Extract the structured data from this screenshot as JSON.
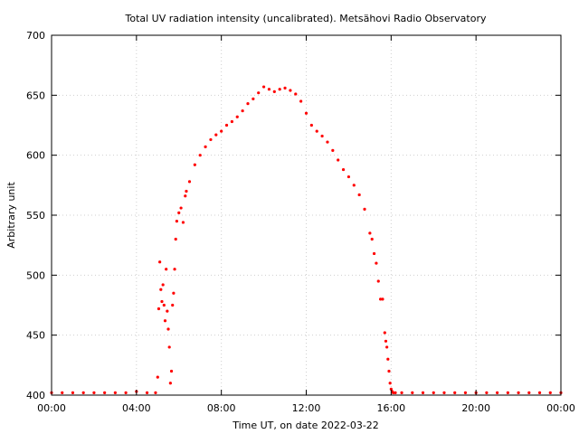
{
  "chart_data": {
    "type": "scatter",
    "title": "Total UV radiation intensity (uncalibrated). Metsähovi Radio Observatory",
    "xlabel": "Time UT, on date 2022-03-22",
    "ylabel": "Arbitrary unit",
    "xlim": [
      0,
      24
    ],
    "ylim": [
      400,
      700
    ],
    "x_ticks": [
      {
        "value": 0,
        "label": "00:00"
      },
      {
        "value": 4,
        "label": "04:00"
      },
      {
        "value": 8,
        "label": "08:00"
      },
      {
        "value": 12,
        "label": "12:00"
      },
      {
        "value": 16,
        "label": "16:00"
      },
      {
        "value": 20,
        "label": "20:00"
      },
      {
        "value": 24,
        "label": "00:00"
      }
    ],
    "y_ticks": [
      {
        "value": 400,
        "label": "400"
      },
      {
        "value": 450,
        "label": "450"
      },
      {
        "value": 500,
        "label": "500"
      },
      {
        "value": 550,
        "label": "550"
      },
      {
        "value": 600,
        "label": "600"
      },
      {
        "value": 650,
        "label": "650"
      },
      {
        "value": 700,
        "label": "700"
      }
    ],
    "grid": true,
    "legend": "none",
    "marker_color": "#ff0000",
    "series": [
      {
        "x": [
          0.0,
          0.5,
          1.0,
          1.5,
          2.0,
          2.5,
          3.0,
          3.5,
          4.0,
          4.5,
          4.9,
          5.0,
          5.05,
          5.1,
          5.15,
          5.2,
          5.25,
          5.3,
          5.35,
          5.4,
          5.45,
          5.5,
          5.55,
          5.6,
          5.65,
          5.7,
          5.75,
          5.8,
          5.85,
          5.9,
          6.0,
          6.1,
          6.2,
          6.3,
          6.35,
          6.5,
          6.75,
          7.0,
          7.25,
          7.5,
          7.75,
          8.0,
          8.25,
          8.5,
          8.75,
          9.0,
          9.25,
          9.5,
          9.75,
          10.0,
          10.25,
          10.5,
          10.75,
          11.0,
          11.25,
          11.5,
          11.75,
          12.0,
          12.25,
          12.5,
          12.75,
          13.0,
          13.25,
          13.5,
          13.75,
          14.0,
          14.25,
          14.5,
          14.75,
          15.0,
          15.1,
          15.2,
          15.3,
          15.4,
          15.5,
          15.6,
          15.7,
          15.75,
          15.8,
          15.85,
          15.9,
          15.95,
          16.0,
          16.05,
          16.1,
          16.2,
          16.5,
          17.0,
          17.5,
          18.0,
          18.5,
          19.0,
          19.5,
          20.0,
          20.5,
          21.0,
          21.5,
          22.0,
          22.5,
          23.0,
          23.5,
          24.0
        ],
        "y": [
          402,
          402,
          402,
          402,
          402,
          402,
          402,
          402,
          403,
          402,
          402,
          415,
          472,
          511,
          488,
          478,
          492,
          475,
          462,
          505,
          470,
          455,
          440,
          410,
          420,
          475,
          485,
          505,
          530,
          545,
          552,
          556,
          544,
          566,
          570,
          578,
          592,
          600,
          607,
          613,
          617,
          620,
          625,
          628,
          632,
          637,
          643,
          647,
          652,
          657,
          655,
          653,
          655,
          656,
          654,
          651,
          645,
          635,
          625,
          620,
          616,
          611,
          604,
          596,
          588,
          582,
          575,
          567,
          555,
          535,
          530,
          518,
          510,
          495,
          480,
          480,
          452,
          445,
          440,
          430,
          420,
          410,
          405,
          403,
          402,
          402,
          402,
          402,
          402,
          402,
          402,
          402,
          402,
          402,
          402,
          402,
          402,
          402,
          402,
          402,
          402,
          402
        ]
      }
    ]
  }
}
